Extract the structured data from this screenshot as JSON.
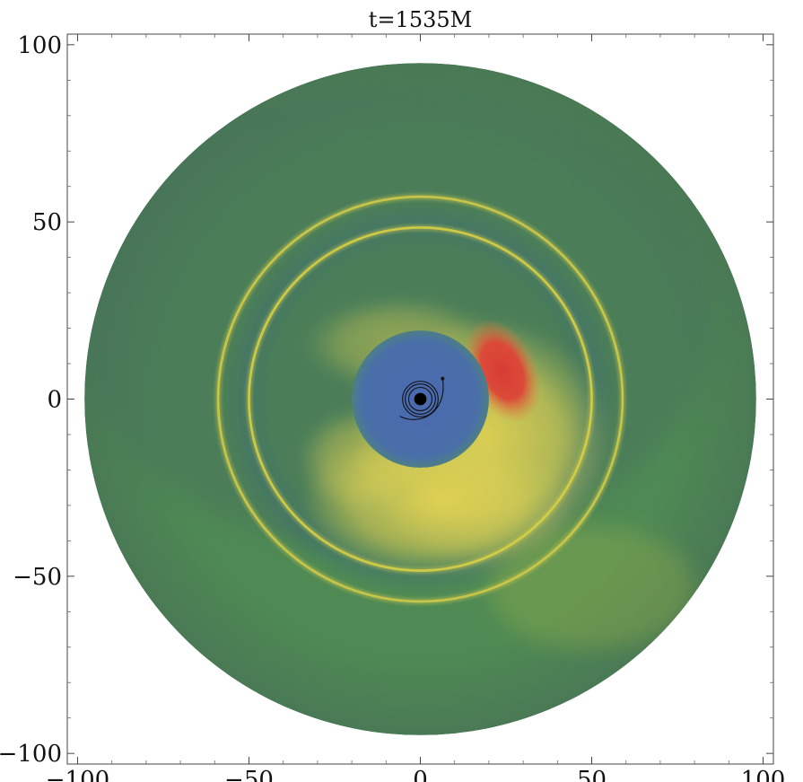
{
  "chart_data": {
    "type": "heatmap",
    "title": "t=1535M",
    "xlabel": "",
    "ylabel": "",
    "xlim": [
      -103,
      103
    ],
    "ylim": [
      -103,
      103
    ],
    "x_ticks": [
      -100,
      -50,
      0,
      50,
      100
    ],
    "y_ticks": [
      -100,
      -50,
      0,
      50,
      100
    ],
    "x_tick_labels": [
      "−100",
      "−50",
      "0",
      "50",
      "100"
    ],
    "y_tick_labels": [
      "−100",
      "−50",
      "0",
      "50",
      "100"
    ],
    "grid": false,
    "disk_outer_radius": 98,
    "inner_cavity_radius": 20,
    "rings": [
      {
        "radius": 50,
        "description_color": "#d8cf45"
      },
      {
        "radius": 59,
        "description_color": "#cfc94a"
      }
    ],
    "hotspot": {
      "center_x": 24,
      "center_y": 8,
      "color": "#d84036"
    },
    "central_object_radius": 1.8,
    "colors": {
      "background": "#ffffff",
      "disk": "#4a7a55",
      "cavity": "#4a6fa8",
      "hot": "#d84036",
      "warm": "#e6d55a"
    }
  }
}
